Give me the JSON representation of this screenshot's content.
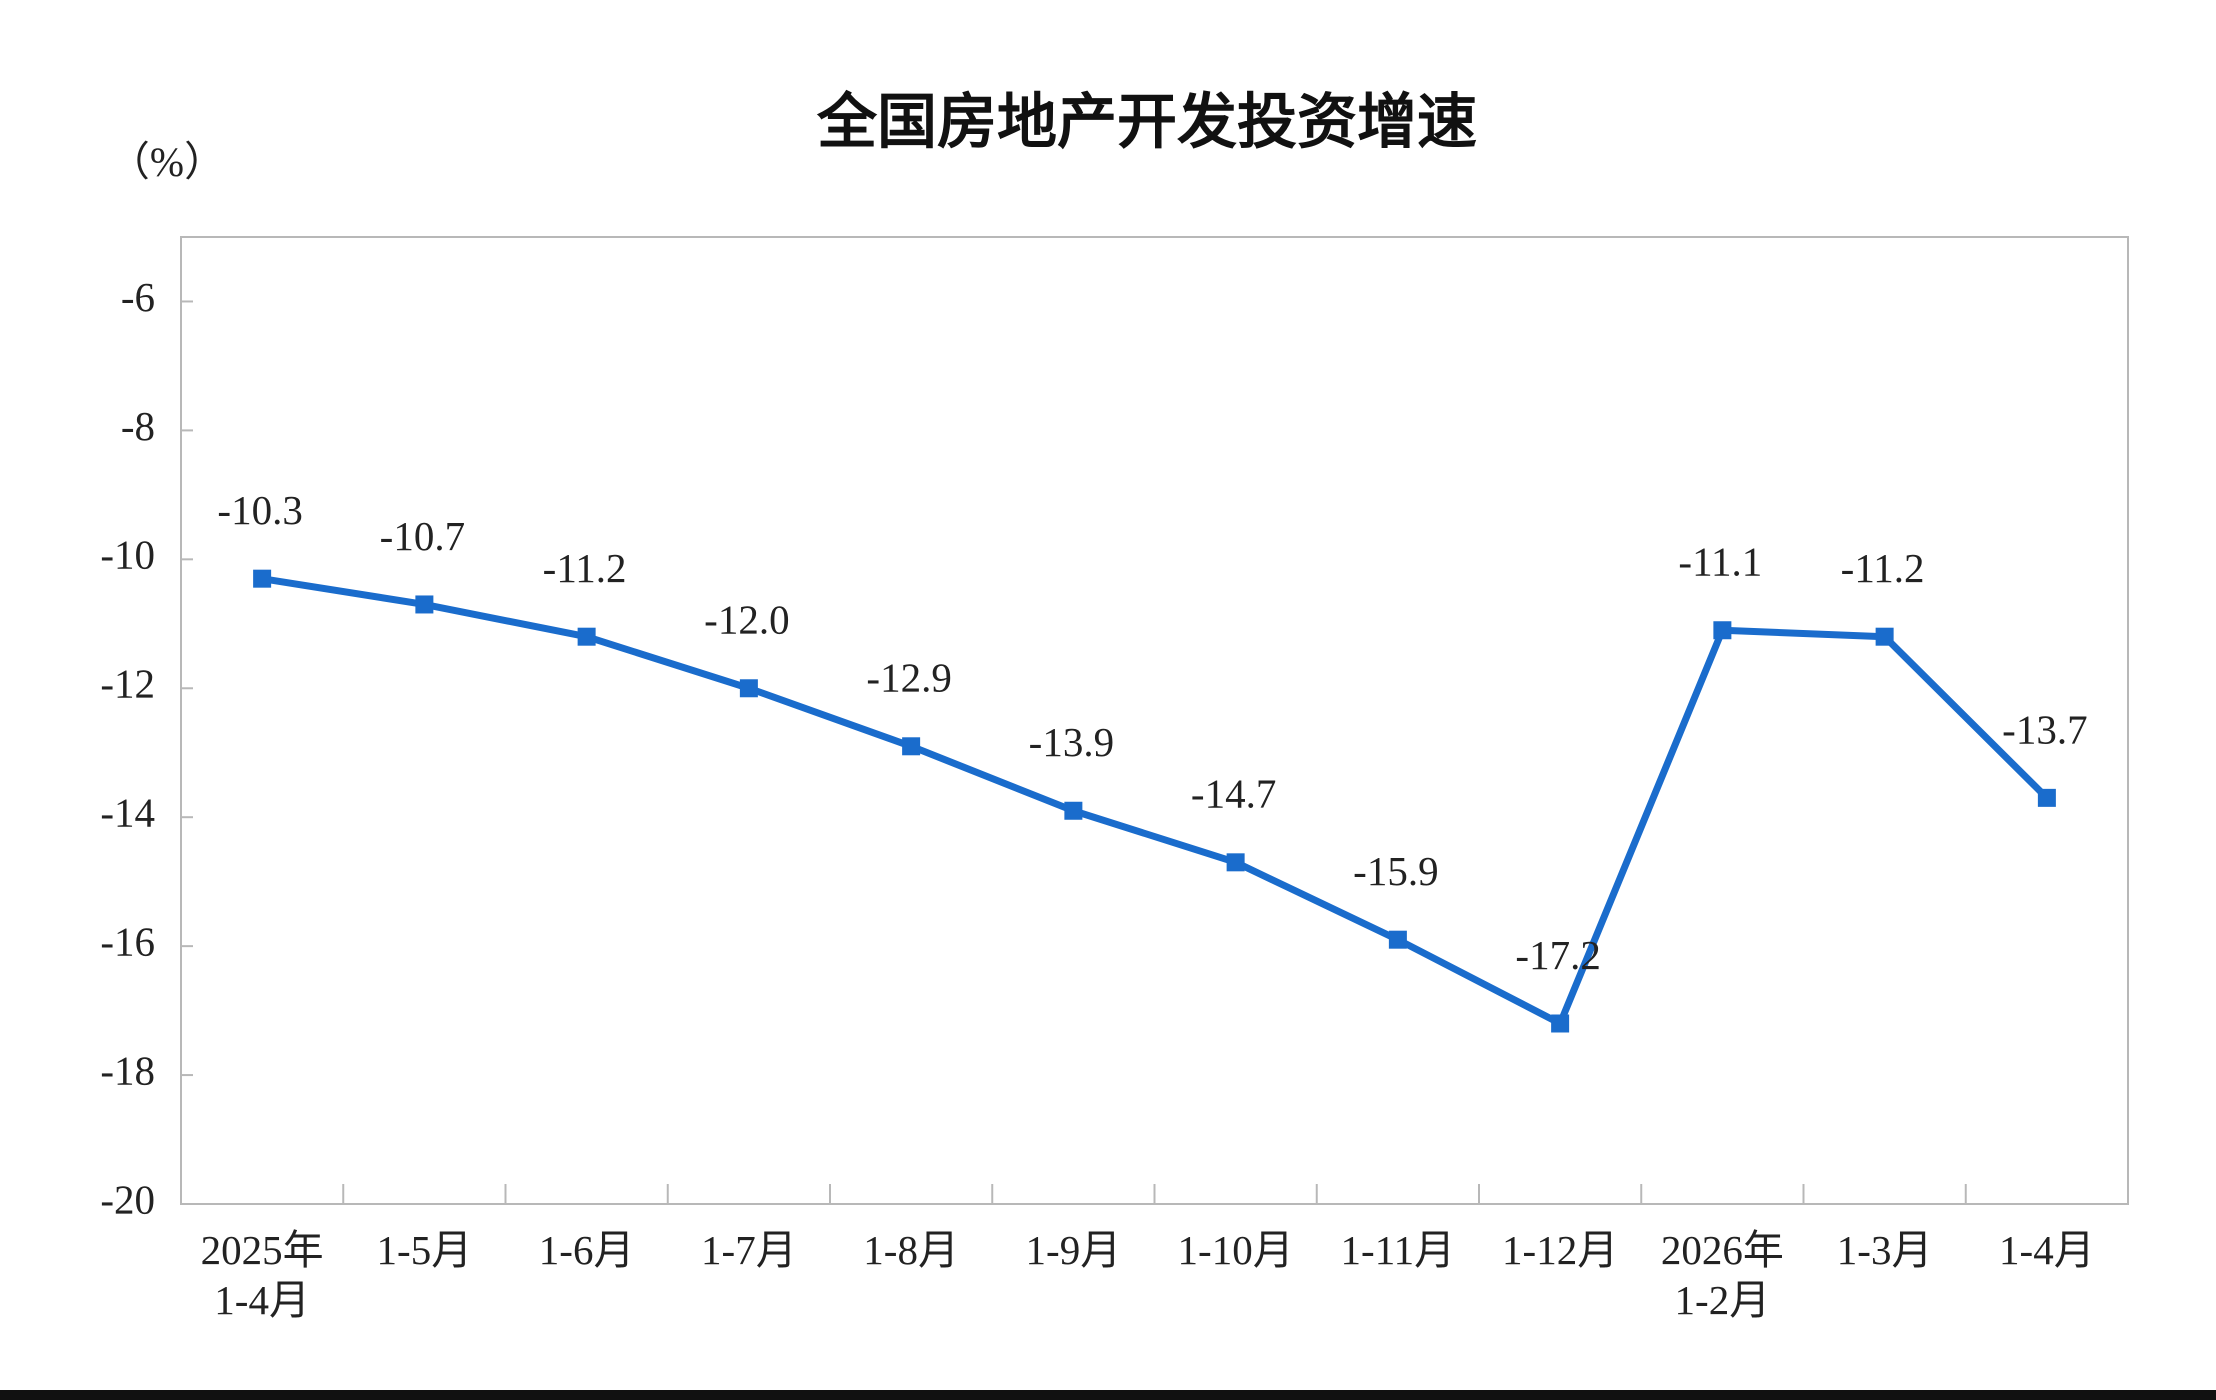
{
  "chart_data": {
    "type": "line",
    "title": "全国房地产开发投资增速",
    "y_label": "（%）",
    "categories": [
      "2025年\n1-4月",
      "1-5月",
      "1-6月",
      "1-7月",
      "1-8月",
      "1-9月",
      "1-10月",
      "1-11月",
      "1-12月",
      "2026年\n1-2月",
      "1-3月",
      "1-4月"
    ],
    "series": [
      {
        "name": "全国房地产开发投资增速",
        "color": "#1a6ccc",
        "values": [
          -10.3,
          -10.7,
          -11.2,
          -12.0,
          -12.9,
          -13.9,
          -14.7,
          -15.9,
          -17.2,
          -11.1,
          -11.2,
          -13.7
        ],
        "value_labels": [
          "-10.3",
          "-10.7",
          "-11.2",
          "-12.0",
          "-12.9",
          "-13.9",
          "-14.7",
          "-15.9",
          "-17.2",
          "-11.1",
          "-11.2",
          "-13.7"
        ]
      }
    ],
    "ylim": [
      -20,
      -5
    ],
    "yticks": [
      -20,
      -18,
      -16,
      -14,
      -12,
      -10,
      -8,
      -6
    ],
    "grid": false
  }
}
